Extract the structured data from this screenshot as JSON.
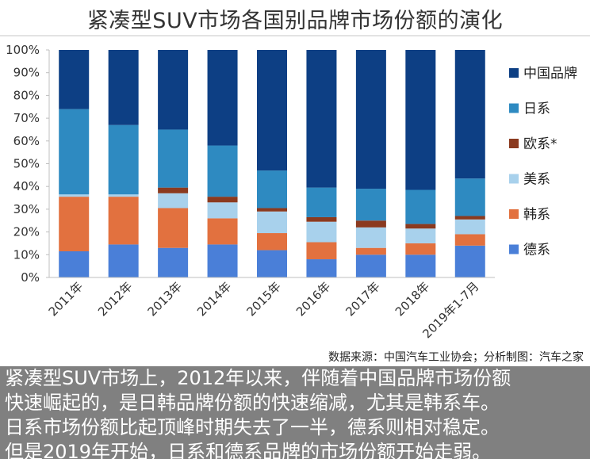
{
  "chart_data": {
    "type": "bar",
    "stacked": true,
    "percent_stacked": true,
    "title": "紧凑型SUV市场各国别品牌市场份额的演化",
    "categories": [
      "2011年",
      "2012年",
      "2013年",
      "2014年",
      "2015年",
      "2016年",
      "2017年",
      "2018年",
      "2019年1-7月"
    ],
    "ylim": [
      0,
      100
    ],
    "yticks": [
      "0%",
      "10%",
      "20%",
      "30%",
      "40%",
      "50%",
      "60%",
      "70%",
      "80%",
      "90%",
      "100%"
    ],
    "grid": false,
    "legend_position": "right",
    "series": [
      {
        "name": "德系",
        "color": "#4a7fd8",
        "values": [
          11.5,
          14.5,
          13,
          14.5,
          12,
          8,
          10,
          10,
          14
        ]
      },
      {
        "name": "韩系",
        "color": "#e2713f",
        "values": [
          24,
          21,
          17.5,
          11.5,
          7.5,
          7.5,
          3,
          5,
          5
        ]
      },
      {
        "name": "美系",
        "color": "#a8d1ec",
        "values": [
          1,
          1,
          6.5,
          7,
          9.5,
          9,
          9,
          6.5,
          6.5
        ]
      },
      {
        "name": "欧系*",
        "color": "#8b3a1f",
        "values": [
          0,
          0,
          2.5,
          2.5,
          1.5,
          2,
          3,
          2,
          1.5
        ]
      },
      {
        "name": "日系",
        "color": "#2e8ac1",
        "values": [
          37.5,
          30.5,
          25.5,
          22.5,
          16.5,
          13,
          14,
          15,
          16.5
        ]
      },
      {
        "name": "中国品牌",
        "color": "#0d3f84",
        "values": [
          26,
          33,
          35,
          42,
          53,
          60.5,
          61,
          61.5,
          56.5
        ]
      }
    ]
  },
  "source_note": "数据来源：中国汽车工业协会；分析制图：汽车之家",
  "caption": {
    "lines": [
      "紧凑型SUV市场上，2012年以来，伴随着中国品牌市场份额",
      "快速崛起的，是日韩品牌份额的快速缩减，尤其是韩系车。",
      "日系市场份额比起顶峰时期失去了一半，德系则相对稳定。",
      "但是2019年开始，日系和德系品牌的市场份额开始走弱。"
    ]
  }
}
